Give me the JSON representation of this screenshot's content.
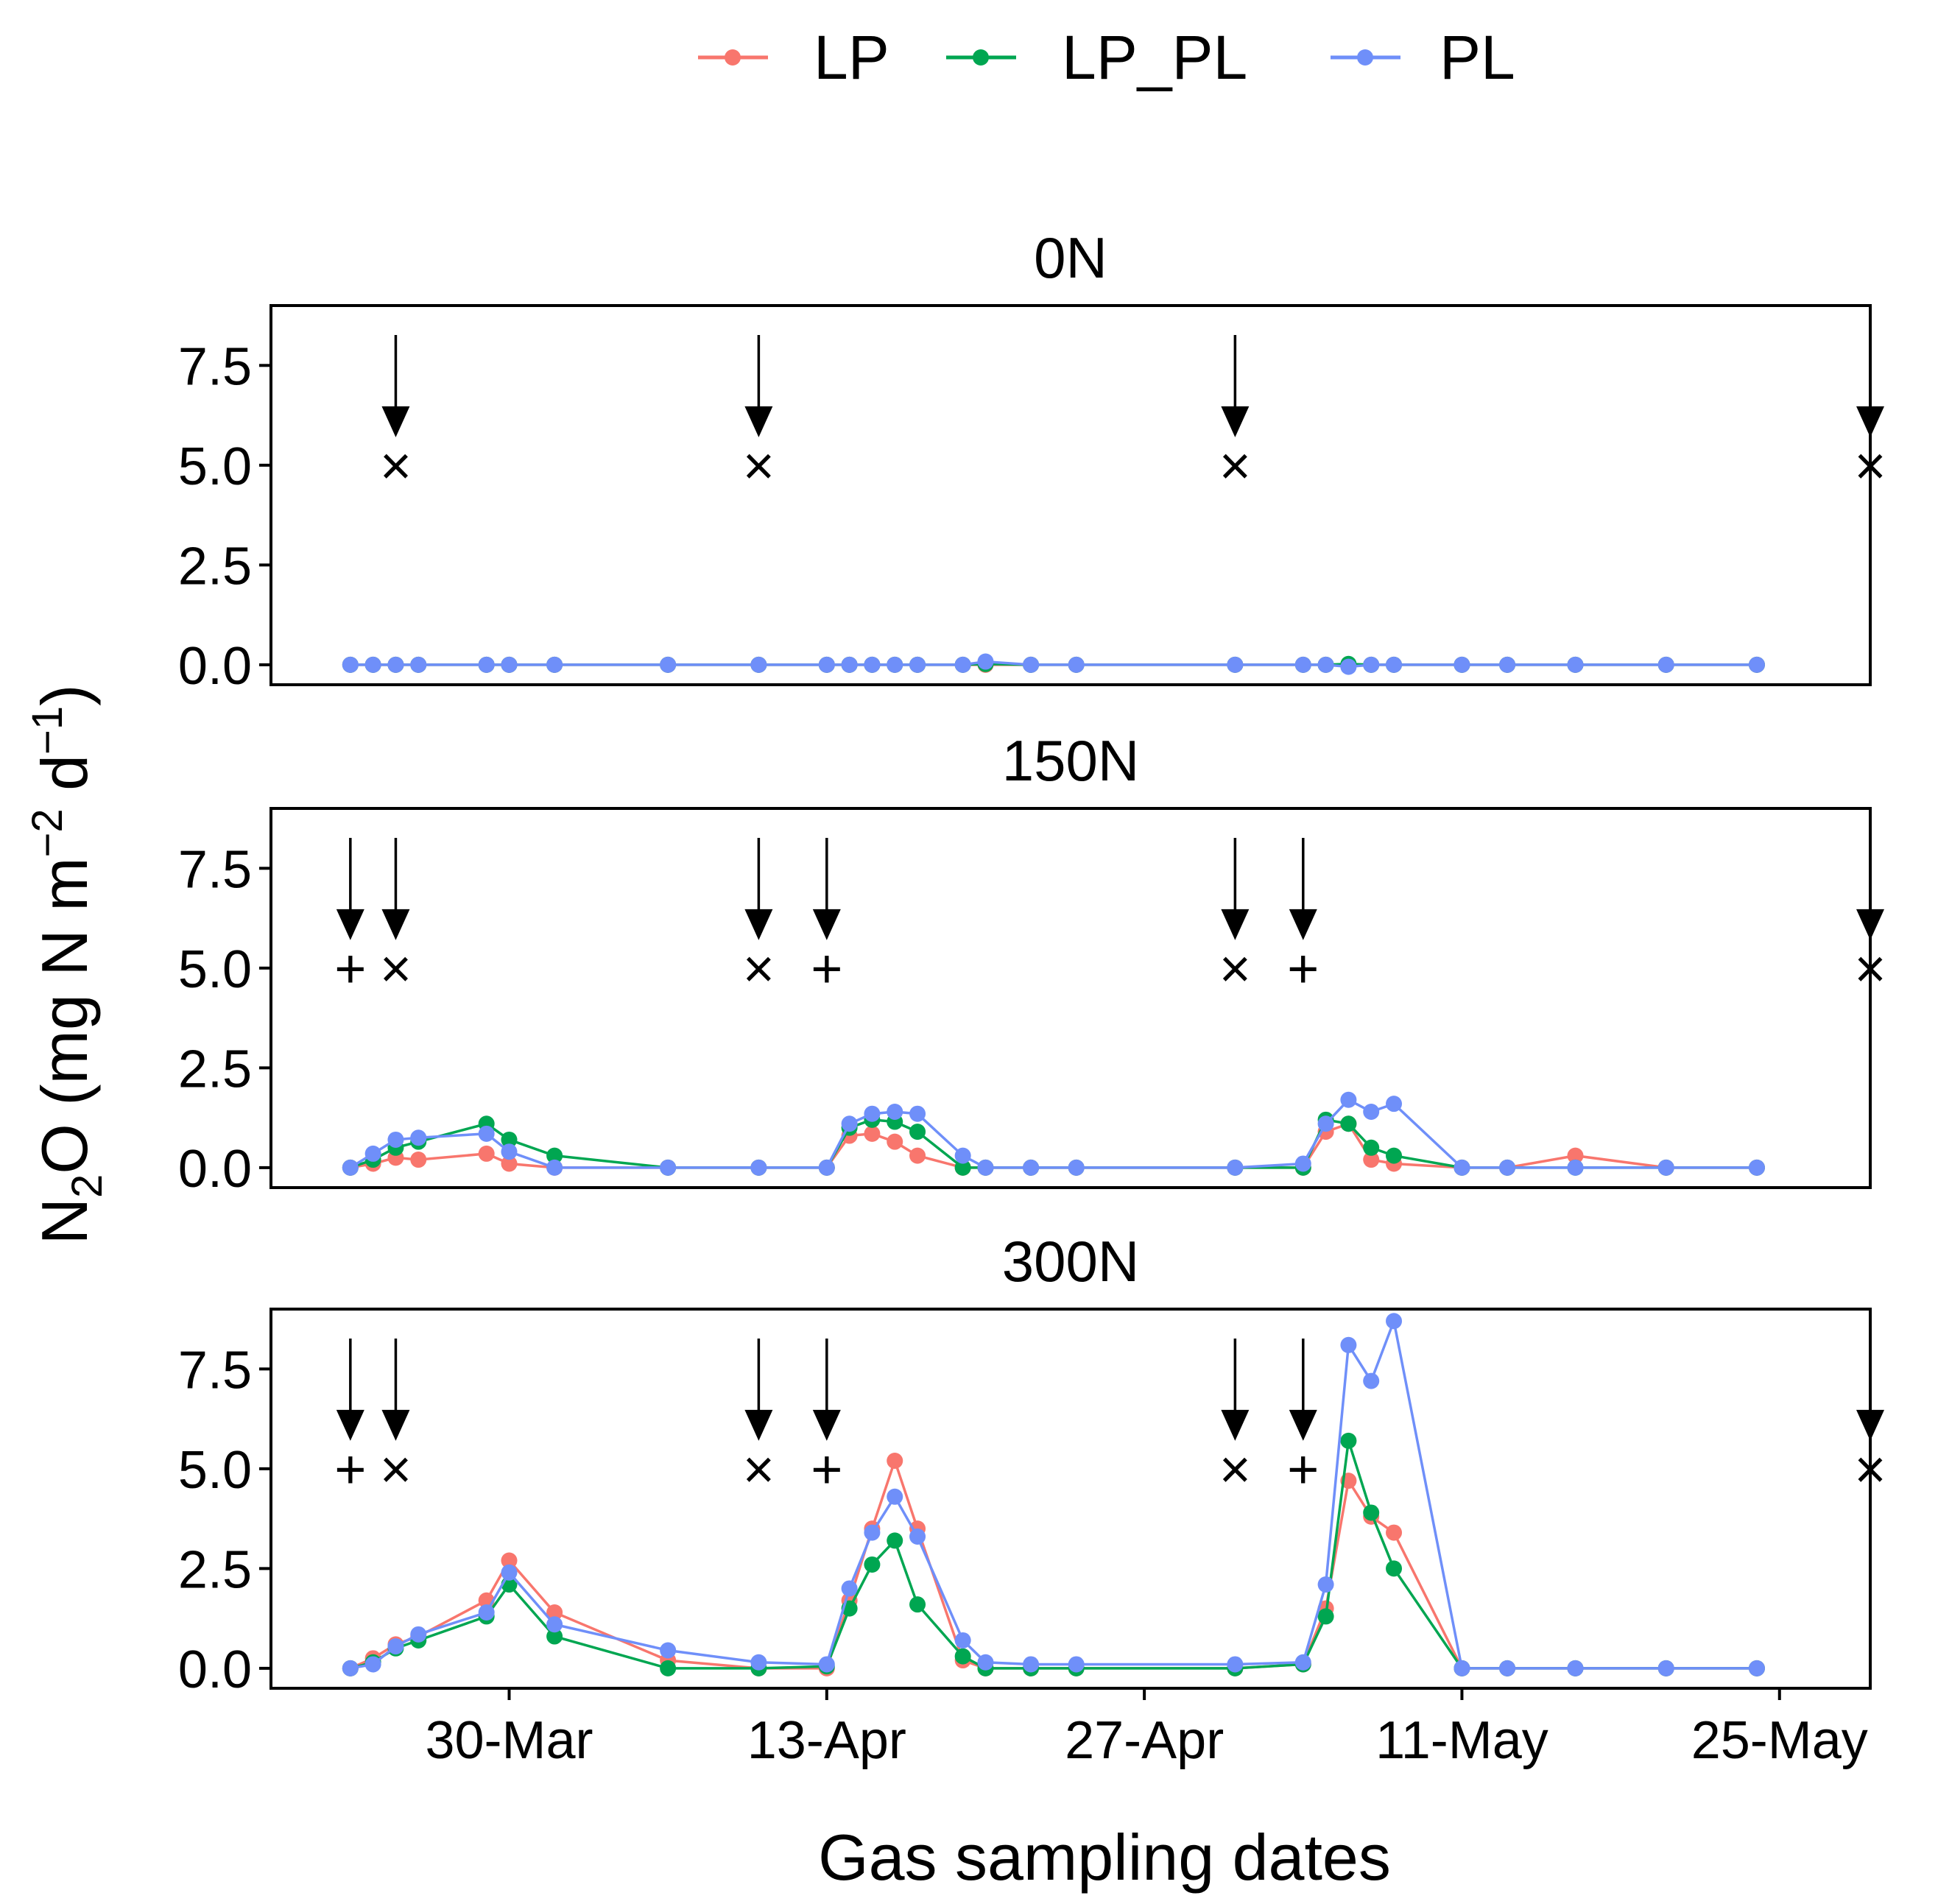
{
  "chart_data": {
    "type": "line",
    "title": "",
    "xlabel": "Gas sampling dates",
    "ylabel": {
      "base": "N",
      "sub": "2",
      "mid": "O (mg N m",
      "sup1": "−2",
      "mid2": " d",
      "sup2": "−1",
      "end": ")"
    },
    "legend": {
      "position": "top",
      "entries": [
        {
          "name": "LP",
          "color": "#F8766D"
        },
        {
          "name": "LP_PL",
          "color": "#00A651"
        },
        {
          "name": "PL",
          "color": "#6F8FF9"
        }
      ]
    },
    "x_axis": {
      "ticks": [
        {
          "label": "30-Mar",
          "day": 0
        },
        {
          "label": "13-Apr",
          "day": 14
        },
        {
          "label": "27-Apr",
          "day": 28
        },
        {
          "label": "11-May",
          "day": 42
        },
        {
          "label": "25-May",
          "day": 56
        }
      ],
      "range": [
        -10.5,
        60
      ]
    },
    "y_axis": {
      "range": [
        -0.5,
        9.0
      ],
      "ticks": [
        "0.0",
        "2.5",
        "5.0",
        "7.5"
      ],
      "tick_values": [
        0,
        2.5,
        5,
        7.5
      ]
    },
    "grid": false,
    "panels": [
      {
        "title": "0N",
        "series": [
          {
            "name": "LP",
            "x": [
              -7,
              -6,
              -5,
              -4,
              -1,
              0,
              2,
              7,
              11,
              14,
              15,
              16,
              17,
              18,
              20,
              21,
              23,
              25,
              32,
              35,
              36,
              37,
              38,
              39,
              42,
              44,
              47,
              51,
              55
            ],
            "y": [
              0,
              0,
              0,
              0,
              0,
              0,
              0,
              0,
              0,
              0,
              0,
              0,
              0,
              0,
              0,
              0,
              0,
              0,
              0,
              0,
              0,
              0,
              0,
              0,
              0,
              0,
              0,
              0,
              0
            ]
          },
          {
            "name": "LP_PL",
            "x": [
              -7,
              -6,
              -5,
              -4,
              -1,
              0,
              2,
              7,
              11,
              14,
              15,
              16,
              17,
              18,
              20,
              21,
              23,
              25,
              32,
              35,
              36,
              37,
              38,
              39,
              42,
              44,
              47,
              51,
              55
            ],
            "y": [
              0,
              0,
              0,
              0,
              0,
              0,
              0,
              0,
              0,
              0,
              0,
              0,
              0,
              0,
              0,
              0.02,
              0,
              0,
              0,
              0,
              0,
              0.02,
              0,
              0,
              0,
              0,
              0,
              0,
              0
            ]
          },
          {
            "name": "PL",
            "x": [
              -7,
              -6,
              -5,
              -4,
              -1,
              0,
              2,
              7,
              11,
              14,
              15,
              16,
              17,
              18,
              20,
              21,
              23,
              25,
              32,
              35,
              36,
              37,
              38,
              39,
              42,
              44,
              47,
              51,
              55
            ],
            "y": [
              0,
              0,
              0,
              0,
              0,
              0,
              0,
              0,
              0,
              0,
              0,
              0,
              0,
              0,
              0,
              0.08,
              0,
              0,
              0,
              0,
              0,
              -0.05,
              0,
              0,
              0,
              0,
              0,
              0,
              0
            ]
          }
        ],
        "events": [
          {
            "day": -5,
            "marker": "×"
          },
          {
            "day": 11,
            "marker": "×"
          },
          {
            "day": 32,
            "marker": "×"
          },
          {
            "day": 60,
            "marker": "×"
          }
        ]
      },
      {
        "title": "150N",
        "series": [
          {
            "name": "LP",
            "x": [
              -7,
              -6,
              -5,
              -4,
              -1,
              0,
              2,
              7,
              11,
              14,
              15,
              16,
              17,
              18,
              20,
              21,
              23,
              25,
              32,
              35,
              36,
              37,
              38,
              39,
              42,
              44,
              47,
              51,
              55
            ],
            "y": [
              0,
              0.1,
              0.25,
              0.2,
              0.35,
              0.1,
              0,
              0,
              0,
              0,
              0.8,
              0.85,
              0.65,
              0.3,
              0,
              0,
              0,
              0,
              0,
              0,
              0.9,
              1.1,
              0.2,
              0.1,
              0,
              0,
              0.3,
              0,
              0
            ]
          },
          {
            "name": "LP_PL",
            "x": [
              -7,
              -6,
              -5,
              -4,
              -1,
              0,
              2,
              7,
              11,
              14,
              15,
              16,
              17,
              18,
              20,
              21,
              23,
              25,
              32,
              35,
              36,
              37,
              38,
              39,
              42,
              44,
              47,
              51,
              55
            ],
            "y": [
              0,
              0.2,
              0.5,
              0.65,
              1.1,
              0.7,
              0.3,
              0,
              0,
              0,
              1.0,
              1.2,
              1.15,
              0.9,
              0,
              0,
              0,
              0,
              0,
              0,
              1.2,
              1.1,
              0.5,
              0.3,
              0,
              0,
              0,
              0,
              0
            ]
          },
          {
            "name": "PL",
            "x": [
              -7,
              -6,
              -5,
              -4,
              -1,
              0,
              2,
              7,
              11,
              14,
              15,
              16,
              17,
              18,
              20,
              21,
              23,
              25,
              32,
              35,
              36,
              37,
              38,
              39,
              42,
              44,
              47,
              51,
              55
            ],
            "y": [
              0,
              0.35,
              0.7,
              0.75,
              0.85,
              0.4,
              0,
              0,
              0,
              0,
              1.1,
              1.35,
              1.4,
              1.35,
              0.3,
              0,
              0,
              0,
              0,
              0.1,
              1.1,
              1.7,
              1.4,
              1.6,
              0,
              0,
              0,
              0,
              0
            ]
          }
        ],
        "events": [
          {
            "day": -7,
            "marker": "+"
          },
          {
            "day": -5,
            "marker": "×"
          },
          {
            "day": 11,
            "marker": "×"
          },
          {
            "day": 14,
            "marker": "+"
          },
          {
            "day": 32,
            "marker": "×"
          },
          {
            "day": 35,
            "marker": "+"
          },
          {
            "day": 60,
            "marker": "×"
          }
        ]
      },
      {
        "title": "300N",
        "series": [
          {
            "name": "LP",
            "x": [
              -7,
              -6,
              -5,
              -4,
              -1,
              0,
              2,
              7,
              11,
              14,
              15,
              16,
              17,
              18,
              20,
              21,
              23,
              25,
              32,
              35,
              36,
              37,
              38,
              39,
              42,
              44,
              47,
              51,
              55
            ],
            "y": [
              0,
              0.25,
              0.6,
              0.8,
              1.7,
              2.7,
              1.4,
              0.2,
              0,
              0,
              1.7,
              3.5,
              5.2,
              3.5,
              0.2,
              0,
              0,
              0,
              0,
              0.1,
              1.5,
              4.7,
              3.8,
              3.4,
              0,
              0,
              0,
              0,
              0
            ]
          },
          {
            "name": "LP_PL",
            "x": [
              -7,
              -6,
              -5,
              -4,
              -1,
              0,
              2,
              7,
              11,
              14,
              15,
              16,
              17,
              18,
              20,
              21,
              23,
              25,
              32,
              35,
              36,
              37,
              38,
              39,
              42,
              44,
              47,
              51,
              55
            ],
            "y": [
              0,
              0.15,
              0.5,
              0.7,
              1.3,
              2.1,
              0.8,
              0,
              0,
              0.05,
              1.5,
              2.6,
              3.2,
              1.6,
              0.3,
              0,
              0,
              0,
              0,
              0.1,
              1.3,
              5.7,
              3.9,
              2.5,
              0,
              0,
              0,
              0,
              0
            ]
          },
          {
            "name": "PL",
            "x": [
              -7,
              -6,
              -5,
              -4,
              -1,
              0,
              2,
              7,
              11,
              14,
              15,
              16,
              17,
              18,
              20,
              21,
              23,
              25,
              32,
              35,
              36,
              37,
              38,
              39,
              42,
              44,
              47,
              51,
              55
            ],
            "y": [
              0,
              0.1,
              0.55,
              0.85,
              1.4,
              2.4,
              1.1,
              0.45,
              0.15,
              0.1,
              2.0,
              3.4,
              4.3,
              3.3,
              0.7,
              0.15,
              0.1,
              0.1,
              0.1,
              0.15,
              2.1,
              8.1,
              7.2,
              8.7,
              0,
              0,
              0,
              0,
              0
            ]
          }
        ],
        "events": [
          {
            "day": -7,
            "marker": "+"
          },
          {
            "day": -5,
            "marker": "×"
          },
          {
            "day": 11,
            "marker": "×"
          },
          {
            "day": 14,
            "marker": "+"
          },
          {
            "day": 32,
            "marker": "×"
          },
          {
            "day": 35,
            "marker": "+"
          },
          {
            "day": 60,
            "marker": "×"
          }
        ]
      }
    ]
  }
}
